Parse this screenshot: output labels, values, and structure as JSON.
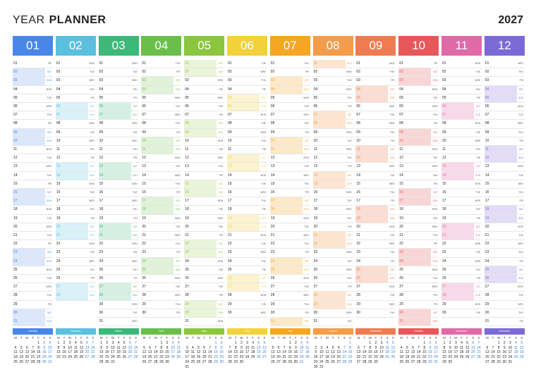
{
  "header": {
    "title_light": "YEAR",
    "title_bold": "PLANNER",
    "year": "2027"
  },
  "weekday_short": [
    "MON",
    "TUE",
    "WED",
    "THU",
    "FRI",
    "SAT",
    "SUN"
  ],
  "mini_headers": [
    "M",
    "T",
    "W",
    "T",
    "F",
    "S",
    "S"
  ],
  "months": [
    {
      "num": "01",
      "name": "January",
      "color": "#4a86e8",
      "tint": "#dbe7fb",
      "days": 31,
      "start": 4
    },
    {
      "num": "02",
      "name": "February",
      "color": "#5bc0de",
      "tint": "#d9f1f8",
      "days": 28,
      "start": 0
    },
    {
      "num": "03",
      "name": "March",
      "color": "#3cb878",
      "tint": "#d5f0e2",
      "days": 31,
      "start": 0
    },
    {
      "num": "04",
      "name": "April",
      "color": "#6abf4b",
      "tint": "#e0f2d8",
      "days": 30,
      "start": 3
    },
    {
      "num": "05",
      "name": "May",
      "color": "#8cc63f",
      "tint": "#e9f4d9",
      "days": 31,
      "start": 5
    },
    {
      "num": "06",
      "name": "June",
      "color": "#f2d13a",
      "tint": "#fbf3cf",
      "days": 30,
      "start": 1
    },
    {
      "num": "07",
      "name": "July",
      "color": "#f5a623",
      "tint": "#fde9c8",
      "days": 31,
      "start": 3
    },
    {
      "num": "08",
      "name": "August",
      "color": "#f39c4a",
      "tint": "#fde5d0",
      "days": 31,
      "start": 6
    },
    {
      "num": "09",
      "name": "September",
      "color": "#ee7c50",
      "tint": "#fbddd1",
      "days": 30,
      "start": 2
    },
    {
      "num": "10",
      "name": "October",
      "color": "#e8575a",
      "tint": "#f9d6d6",
      "days": 31,
      "start": 4
    },
    {
      "num": "11",
      "name": "November",
      "color": "#e06aa8",
      "tint": "#f7d9e9",
      "days": 30,
      "start": 0
    },
    {
      "num": "12",
      "name": "December",
      "color": "#7b6ad6",
      "tint": "#e2dcf6",
      "days": 31,
      "start": 2
    }
  ]
}
